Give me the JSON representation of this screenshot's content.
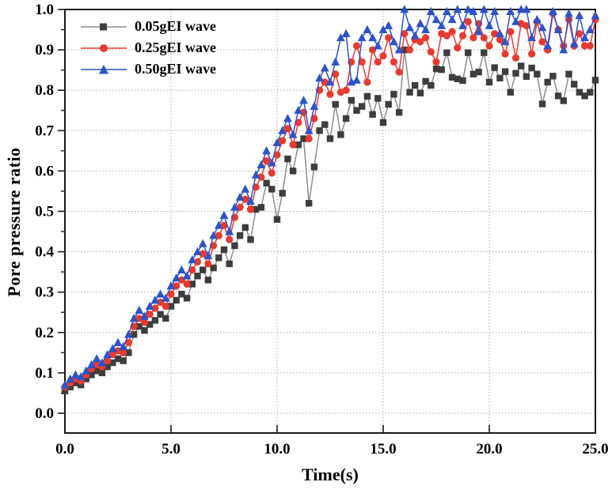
{
  "figure": {
    "title": "",
    "xlabel": "Time(s)",
    "ylabel": "Pore pressure ratio"
  },
  "legend": {
    "position": "top-left-inside",
    "items": [
      {
        "label": "0.05gEI wave",
        "marker": "square",
        "line_color": "#8c8c8c",
        "marker_color": "#3d3d3d"
      },
      {
        "label": "0.25gEI wave",
        "marker": "circle",
        "line_color": "#e8392f",
        "marker_color": "#e8392f"
      },
      {
        "label": "0.50gEI wave",
        "marker": "triangle",
        "line_color": "#2d53cb",
        "marker_color": "#2d53cb"
      }
    ]
  },
  "chart_data": {
    "type": "line",
    "title": "",
    "xlabel": "Time(s)",
    "ylabel": "Pore pressure ratio",
    "xlim": [
      0,
      25
    ],
    "ylim": [
      -0.05,
      1.0
    ],
    "x_ticks": [
      0,
      5,
      10,
      15,
      20,
      25
    ],
    "x_tick_labels": [
      "0.0",
      "5.0",
      "10.0",
      "15.0",
      "20.0",
      "25.0"
    ],
    "y_ticks": [
      0.0,
      0.1,
      0.2,
      0.3,
      0.4,
      0.5,
      0.6,
      0.7,
      0.8,
      0.9,
      1.0
    ],
    "y_tick_labels": [
      "0.0",
      "0.1",
      "0.2",
      "0.3",
      "0.4",
      "0.5",
      "0.6",
      "0.7",
      "0.8",
      "0.9",
      "1.0"
    ],
    "grid": {
      "horizontal_at": [
        0.0,
        0.1,
        0.2,
        0.3,
        0.4,
        0.5,
        0.6,
        0.7,
        0.8,
        0.9
      ],
      "vertical_at": [
        5,
        10,
        15,
        20
      ],
      "style": "dotted"
    },
    "legend_position": "top-left inside plot",
    "x_start": 0,
    "x_step": 0.25,
    "series": [
      {
        "name": "0.05gEI wave",
        "marker": "square",
        "line_color": "#8c8c8c",
        "marker_color": "#3d3d3d",
        "values": [
          0.055,
          0.065,
          0.075,
          0.07,
          0.085,
          0.095,
          0.105,
          0.1,
          0.115,
          0.125,
          0.135,
          0.13,
          0.15,
          0.195,
          0.215,
          0.205,
          0.22,
          0.23,
          0.245,
          0.235,
          0.265,
          0.28,
          0.295,
          0.285,
          0.32,
          0.34,
          0.355,
          0.33,
          0.36,
          0.385,
          0.405,
          0.37,
          0.415,
          0.44,
          0.46,
          0.43,
          0.505,
          0.51,
          0.57,
          0.555,
          0.48,
          0.545,
          0.63,
          0.6,
          0.665,
          0.68,
          0.52,
          0.61,
          0.7,
          0.715,
          0.68,
          0.765,
          0.69,
          0.73,
          0.775,
          0.75,
          0.76,
          0.785,
          0.74,
          0.78,
          0.72,
          0.765,
          0.79,
          0.745,
          0.9,
          0.795,
          0.812,
          0.793,
          0.822,
          0.812,
          0.853,
          0.851,
          0.893,
          0.832,
          0.828,
          0.824,
          0.893,
          0.84,
          0.845,
          0.893,
          0.82,
          0.856,
          0.83,
          0.846,
          0.795,
          0.842,
          0.86,
          0.834,
          0.855,
          0.84,
          0.766,
          0.82,
          0.835,
          0.786,
          0.774,
          0.84,
          0.815,
          0.795,
          0.786,
          0.795,
          0.825
        ]
      },
      {
        "name": "0.25gEI wave",
        "marker": "circle",
        "line_color": "#e8392f",
        "marker_color": "#e8392f",
        "values": [
          0.065,
          0.075,
          0.085,
          0.08,
          0.095,
          0.11,
          0.12,
          0.115,
          0.13,
          0.145,
          0.155,
          0.15,
          0.175,
          0.215,
          0.235,
          0.225,
          0.245,
          0.26,
          0.275,
          0.265,
          0.295,
          0.315,
          0.33,
          0.32,
          0.355,
          0.375,
          0.395,
          0.37,
          0.415,
          0.44,
          0.465,
          0.43,
          0.485,
          0.51,
          0.53,
          0.505,
          0.56,
          0.585,
          0.625,
          0.595,
          0.64,
          0.675,
          0.705,
          0.665,
          0.72,
          0.745,
          0.68,
          0.73,
          0.8,
          0.82,
          0.79,
          0.84,
          0.795,
          0.8,
          0.87,
          0.91,
          0.87,
          0.82,
          0.9,
          0.87,
          0.885,
          0.93,
          0.87,
          0.845,
          0.94,
          0.9,
          0.925,
          0.92,
          0.93,
          0.895,
          0.87,
          0.94,
          0.935,
          0.945,
          0.905,
          0.935,
          0.97,
          0.93,
          0.965,
          0.93,
          0.91,
          0.94,
          0.925,
          0.89,
          0.945,
          0.88,
          0.965,
          0.96,
          0.89,
          0.97,
          0.92,
          0.9,
          0.99,
          0.95,
          0.91,
          0.975,
          0.91,
          0.94,
          0.91,
          0.91,
          0.975
        ]
      },
      {
        "name": "0.50gEI wave",
        "marker": "triangle",
        "line_color": "#2d53cb",
        "marker_color": "#2d53cb",
        "values": [
          0.07,
          0.085,
          0.095,
          0.09,
          0.105,
          0.12,
          0.135,
          0.125,
          0.145,
          0.16,
          0.175,
          0.165,
          0.195,
          0.235,
          0.255,
          0.24,
          0.265,
          0.28,
          0.295,
          0.285,
          0.315,
          0.335,
          0.355,
          0.34,
          0.38,
          0.4,
          0.42,
          0.39,
          0.44,
          0.465,
          0.49,
          0.45,
          0.51,
          0.535,
          0.555,
          0.525,
          0.59,
          0.615,
          0.65,
          0.62,
          0.67,
          0.7,
          0.73,
          0.69,
          0.75,
          0.775,
          0.7,
          0.76,
          0.83,
          0.855,
          0.82,
          0.87,
          0.93,
          0.94,
          0.82,
          0.825,
          0.93,
          0.95,
          0.93,
          0.91,
          0.95,
          0.96,
          0.92,
          0.9,
          1.0,
          0.955,
          0.935,
          0.965,
          0.95,
          0.995,
          0.975,
          0.96,
          0.995,
          0.975,
          1.0,
          0.96,
          1.0,
          0.995,
          0.945,
          1.0,
          0.96,
          0.995,
          0.94,
          0.92,
          0.995,
          0.97,
          1.0,
          1.0,
          0.93,
          0.975,
          0.955,
          0.91,
          0.995,
          0.95,
          0.9,
          0.99,
          0.915,
          0.985,
          0.93,
          0.95,
          0.985
        ]
      }
    ],
    "colors": {
      "axis": "#1a1a1a",
      "grid": "#a8a8a8",
      "text": "#000000"
    }
  }
}
